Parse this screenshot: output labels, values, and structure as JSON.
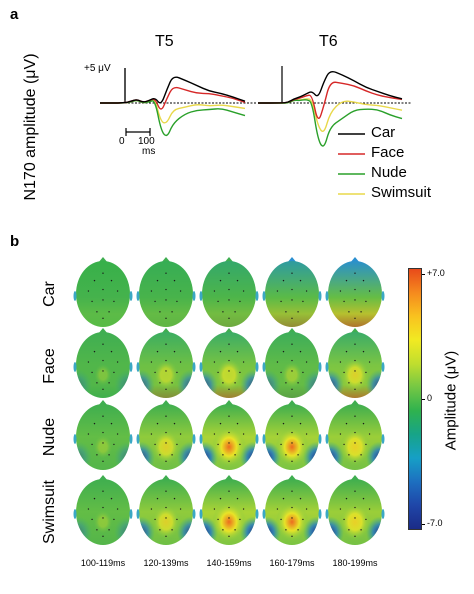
{
  "figure": {
    "panel_a_letter": "a",
    "panel_b_letter": "b"
  },
  "panel_a": {
    "ylabel": "N170 amplitude (μV)",
    "scale_y_label": "+5 μV",
    "scale_x_label_start": "0",
    "scale_x_label_end": "100",
    "scale_x_unit": "ms",
    "electrodes": [
      {
        "name": "T5"
      },
      {
        "name": "T6"
      }
    ],
    "legend": [
      {
        "label": "Car",
        "color": "#000000"
      },
      {
        "label": "Face",
        "color": "#d62828"
      },
      {
        "label": "Nude",
        "color": "#2aa02a"
      },
      {
        "label": "Swimsuit",
        "color": "#e8d84a"
      }
    ]
  },
  "chart_data": {
    "type": "line",
    "title": "",
    "xlabel": "",
    "ylabel": "N170 amplitude (μV)",
    "x_unit": "ms",
    "x": [
      0,
      25,
      50,
      75,
      100,
      125,
      150,
      175,
      200,
      250,
      300,
      350,
      400,
      450,
      500
    ],
    "panels": [
      {
        "electrode": "T5",
        "series": [
          {
            "name": "Car",
            "values": [
              0,
              0.3,
              0.6,
              0.1,
              0.4,
              0.9,
              -0.4,
              2.3,
              4.6,
              3.8,
              2.9,
              2.0,
              1.6,
              1.0,
              0.3
            ]
          },
          {
            "name": "Face",
            "values": [
              0,
              0.3,
              0.6,
              0.1,
              0.4,
              0.8,
              -1.6,
              0.8,
              2.8,
              2.2,
              1.6,
              1.6,
              1.2,
              0.8,
              0.1
            ]
          },
          {
            "name": "Nude",
            "values": [
              0,
              0.2,
              0.5,
              0.0,
              0.2,
              0.5,
              -4.6,
              -5.8,
              -3.4,
              -1.8,
              -1.2,
              -1.1,
              -0.9,
              -1.5,
              -2.1
            ]
          },
          {
            "name": "Swimsuit",
            "values": [
              0,
              0.2,
              0.5,
              0.0,
              0.2,
              0.6,
              -3.2,
              -3.4,
              -1.1,
              -0.7,
              -0.2,
              -0.5,
              -0.3,
              -0.6,
              -0.9
            ]
          }
        ]
      },
      {
        "electrode": "T6",
        "series": [
          {
            "name": "Car",
            "values": [
              0,
              0.1,
              0.7,
              1.0,
              1.5,
              2.0,
              0.8,
              3.6,
              5.5,
              4.7,
              3.7,
              2.6,
              1.9,
              1.2,
              0.7
            ]
          },
          {
            "name": "Face",
            "values": [
              0,
              0.1,
              0.6,
              0.8,
              1.2,
              1.4,
              -3.5,
              -0.4,
              3.6,
              3.3,
              2.9,
              2.0,
              1.3,
              0.9,
              0.6
            ]
          },
          {
            "name": "Nude",
            "values": [
              0,
              0.0,
              0.5,
              0.4,
              0.6,
              0.2,
              -6.2,
              -7.7,
              -4.0,
              -2.6,
              -1.2,
              -1.0,
              -1.1,
              -2.0,
              -2.6
            ]
          },
          {
            "name": "Swimsuit",
            "values": [
              0,
              0.0,
              0.5,
              0.5,
              0.7,
              0.6,
              -3.9,
              -5.2,
              -1.6,
              0.4,
              0.2,
              -0.3,
              -0.4,
              -0.8,
              -1.2
            ]
          }
        ]
      }
    ]
  },
  "panel_b": {
    "rows": [
      {
        "label": "Car",
        "levels": [
          0.0,
          0.05,
          0.15,
          0.4,
          0.6
        ]
      },
      {
        "label": "Face",
        "levels": [
          0.05,
          0.35,
          0.45,
          0.2,
          0.5
        ]
      },
      {
        "label": "Nude",
        "levels": [
          0.1,
          0.5,
          0.75,
          0.7,
          0.6
        ]
      },
      {
        "label": "Swimsuit",
        "levels": [
          0.1,
          0.5,
          0.75,
          0.7,
          0.6
        ]
      }
    ],
    "time_windows": [
      "100-119ms",
      "120-139ms",
      "140-159ms",
      "160-179ms",
      "180-199ms"
    ],
    "colorbar": {
      "max_label": "+7.0",
      "mid_label": "0",
      "min_label": "-7.0",
      "label": "Amplitude (μV)",
      "range": [
        -7.0,
        7.0
      ],
      "colors_top_to_bottom": [
        "#e84a1a",
        "#f58a1e",
        "#f9c21f",
        "#f1ea22",
        "#c0de2e",
        "#74c744",
        "#2fb24e",
        "#17a488",
        "#169fc6",
        "#1d6fc0",
        "#1f46a8",
        "#1b2b87"
      ]
    }
  }
}
